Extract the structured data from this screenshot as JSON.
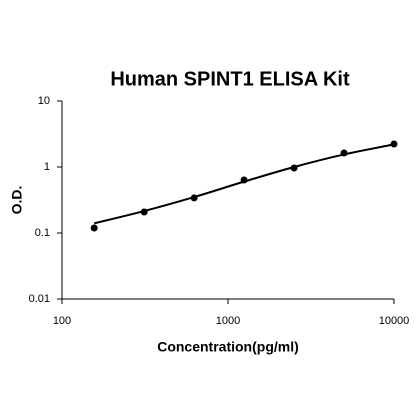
{
  "chart_data": {
    "type": "scatter",
    "title": "Human SPINT1 ELISA Kit",
    "xlabel": "Concentration(pg/ml)",
    "ylabel": "O.D.",
    "xscale": "log",
    "yscale": "log",
    "xlim": [
      100,
      10000
    ],
    "ylim": [
      0.01,
      10
    ],
    "xticks": [
      100,
      1000,
      10000
    ],
    "yticks": [
      0.01,
      0.1,
      1,
      10
    ],
    "series": [
      {
        "color": "#000000",
        "x": [
          156.25,
          312.5,
          625,
          1250,
          2500,
          5000,
          10000
        ],
        "values": [
          0.119,
          0.208,
          0.34,
          0.635,
          0.966,
          1.63,
          2.23
        ]
      }
    ],
    "curve": {
      "color": "#000000",
      "x": [
        156.25,
        312.5,
        625,
        1250,
        2500,
        5000,
        10000
      ],
      "values": [
        0.14,
        0.215,
        0.35,
        0.6,
        1.0,
        1.55,
        2.2
      ]
    }
  }
}
